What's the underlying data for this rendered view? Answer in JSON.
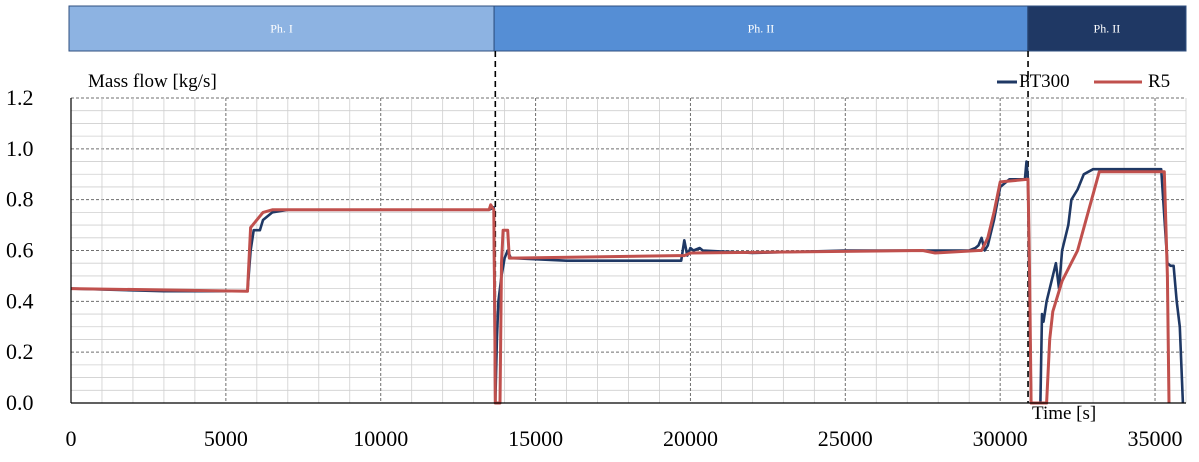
{
  "chart_data": {
    "type": "line",
    "ylabel": "Mass flow [kg/s]",
    "xlabel": "Time [s]",
    "xlim": [
      0,
      36000
    ],
    "ylim": [
      0,
      1.2
    ],
    "xticks": [
      "0",
      "5000",
      "10000",
      "15000",
      "20000",
      "25000",
      "30000",
      "35000"
    ],
    "yticks": [
      "0.0",
      "0.2",
      "0.4",
      "0.6",
      "0.8",
      "1.0",
      "1.2"
    ],
    "grid": true,
    "legend": "top-right",
    "phases": [
      {
        "label": "Ph. I",
        "start": 0,
        "end": 13700,
        "color": "#8db3e2",
        "text_color": "#ffffff"
      },
      {
        "label": "Ph. II",
        "start": 13700,
        "end": 30900,
        "color": "#558ed5",
        "text_color": "#ffffff"
      },
      {
        "label": "Ph. II",
        "start": 30900,
        "end": 36000,
        "color": "#1f3864",
        "text_color": "#ffffff"
      }
    ],
    "phase_dividers": [
      13700,
      30900
    ],
    "series": [
      {
        "name": "PT300",
        "color": "#1f3864",
        "x": [
          0,
          3000,
          5700,
          5800,
          5900,
          6100,
          6200,
          6500,
          7000,
          10000,
          13000,
          13500,
          13650,
          13700,
          13750,
          13800,
          13900,
          14000,
          14100,
          14200,
          16000,
          19000,
          19700,
          19800,
          19900,
          20000,
          20100,
          20300,
          20400,
          22000,
          25000,
          27000,
          29000,
          29200,
          29300,
          29400,
          29500,
          29600,
          29800,
          30000,
          30300,
          30600,
          30800,
          30850,
          30900,
          31000,
          31300,
          31350,
          31400,
          31500,
          31700,
          31800,
          31900,
          32000,
          32100,
          32200,
          32300,
          32500,
          32700,
          33000,
          34000,
          35000,
          35200,
          35400,
          35500,
          35600,
          35700,
          35800,
          35900
        ],
        "y": [
          0.45,
          0.44,
          0.44,
          0.6,
          0.68,
          0.68,
          0.72,
          0.75,
          0.76,
          0.76,
          0.76,
          0.76,
          0.77,
          0.0,
          0.25,
          0.4,
          0.5,
          0.57,
          0.6,
          0.57,
          0.56,
          0.56,
          0.56,
          0.64,
          0.58,
          0.61,
          0.6,
          0.61,
          0.6,
          0.59,
          0.6,
          0.6,
          0.6,
          0.61,
          0.62,
          0.65,
          0.6,
          0.62,
          0.72,
          0.85,
          0.88,
          0.88,
          0.88,
          0.95,
          0.88,
          0.0,
          0.0,
          0.35,
          0.32,
          0.4,
          0.5,
          0.55,
          0.45,
          0.6,
          0.65,
          0.7,
          0.8,
          0.84,
          0.9,
          0.92,
          0.92,
          0.92,
          0.92,
          0.55,
          0.54,
          0.54,
          0.4,
          0.3,
          0.0
        ]
      },
      {
        "name": "R5",
        "color": "#c0504d",
        "x": [
          0,
          5700,
          5800,
          6200,
          6500,
          13500,
          13550,
          13600,
          13650,
          13680,
          13700,
          13800,
          13850,
          13900,
          13950,
          14050,
          14100,
          14150,
          14200,
          19600,
          19800,
          20000,
          27500,
          27900,
          29300,
          29400,
          29600,
          29800,
          30000,
          30900,
          30950,
          31000,
          31050,
          31100,
          31500,
          31600,
          31700,
          32000,
          32500,
          33200,
          35200,
          35300,
          35400,
          35450
        ],
        "y": [
          0.45,
          0.44,
          0.69,
          0.75,
          0.76,
          0.76,
          0.78,
          0.77,
          0.76,
          0.38,
          0.0,
          0.0,
          0.0,
          0.55,
          0.68,
          0.68,
          0.68,
          0.57,
          0.57,
          0.58,
          0.58,
          0.59,
          0.6,
          0.59,
          0.6,
          0.6,
          0.65,
          0.75,
          0.87,
          0.88,
          0.5,
          0.0,
          0.0,
          0.0,
          0.0,
          0.25,
          0.36,
          0.48,
          0.6,
          0.91,
          0.91,
          0.91,
          0.5,
          0.0
        ]
      }
    ]
  }
}
